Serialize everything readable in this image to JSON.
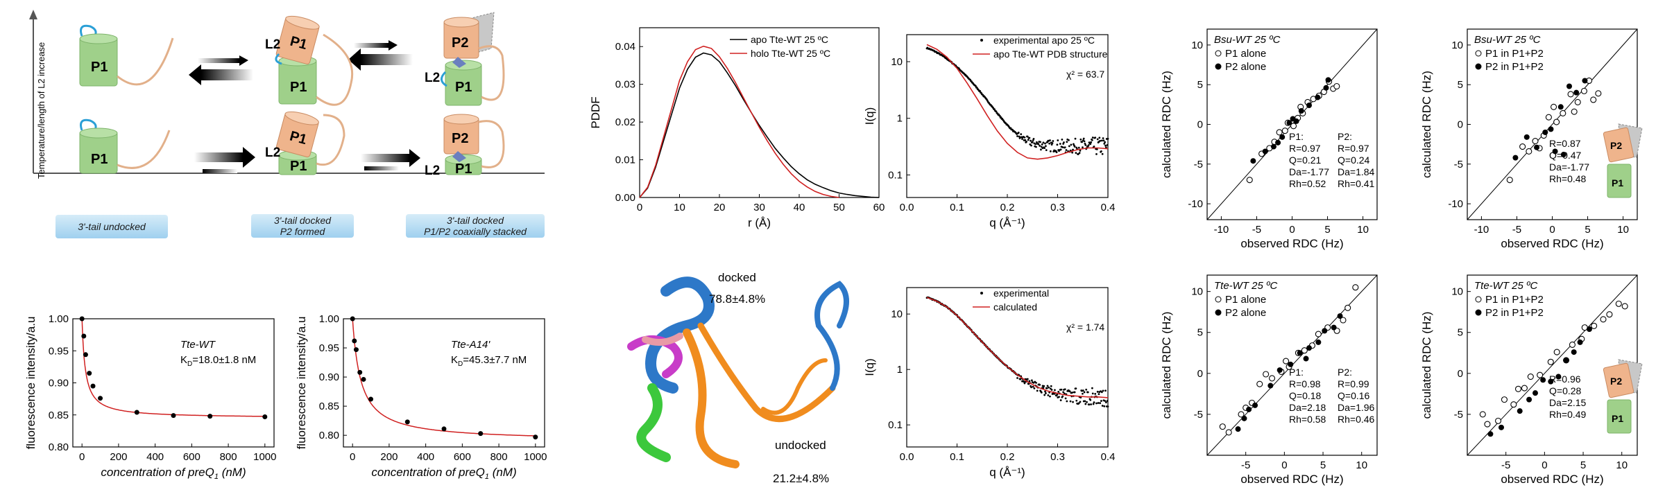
{
  "schematic": {
    "yaxis_label": "Temperature/length of L2 increase",
    "states": [
      "3'-tail undocked",
      "3'-tail docked\nP2 formed",
      "3'-tail docked\nP1/P2 coaxially stacked"
    ],
    "labels": {
      "p1": "P1",
      "p2": "P2",
      "l2": "L2"
    },
    "colors": {
      "p1": "#9fd08a",
      "p2": "#efb48c",
      "tail": "#e2b08a",
      "loop": "#2a9fd6"
    }
  },
  "structure": {
    "docked_label": "docked",
    "docked_pct": "78.8±4.8%",
    "undocked_label": "undocked",
    "undocked_pct": "21.2±4.8%"
  },
  "chart_data": [
    {
      "id": "pddf",
      "type": "line",
      "xlabel": "r (Å)",
      "ylabel": "PDDF",
      "xlim": [
        0,
        60
      ],
      "ylim": [
        0,
        0.045
      ],
      "xticks": [
        "0",
        "10",
        "20",
        "30",
        "40",
        "50",
        "60"
      ],
      "yticks": [
        "0.00",
        "0.01",
        "0.02",
        "0.03",
        "0.04"
      ],
      "series": [
        {
          "name": "apo Tte-WT 25 ºC",
          "color": "#000000",
          "x": [
            0,
            2,
            4,
            6,
            8,
            10,
            12,
            14,
            16,
            18,
            20,
            22,
            24,
            26,
            28,
            30,
            32,
            34,
            36,
            38,
            40,
            42,
            44,
            46,
            48,
            50,
            52,
            54,
            56,
            58,
            60
          ],
          "y": [
            0,
            0.0025,
            0.008,
            0.015,
            0.022,
            0.029,
            0.034,
            0.0372,
            0.0383,
            0.0378,
            0.036,
            0.033,
            0.0297,
            0.026,
            0.0225,
            0.0191,
            0.016,
            0.013,
            0.0105,
            0.0082,
            0.0063,
            0.0047,
            0.0035,
            0.0026,
            0.0018,
            0.0012,
            0.0008,
            0.0005,
            0.0003,
            0.0001,
            0
          ]
        },
        {
          "name": "holo Tte-WT 25 ºC",
          "color": "#d02020",
          "x": [
            0,
            2,
            4,
            6,
            8,
            10,
            12,
            14,
            16,
            18,
            20,
            22,
            24,
            26,
            28,
            30,
            32,
            34,
            36,
            38,
            40,
            42,
            44,
            46,
            48,
            50
          ],
          "y": [
            0,
            0.0027,
            0.0085,
            0.016,
            0.0235,
            0.031,
            0.036,
            0.0392,
            0.0401,
            0.0395,
            0.0373,
            0.0342,
            0.0305,
            0.0265,
            0.0225,
            0.0186,
            0.015,
            0.0117,
            0.0088,
            0.0063,
            0.0043,
            0.0028,
            0.0016,
            0.0008,
            0.0003,
            0
          ]
        }
      ]
    },
    {
      "id": "saxs-top",
      "type": "scatter",
      "xlabel": "q (Å⁻¹)",
      "ylabel": "I(q)",
      "xlim": [
        0,
        0.4
      ],
      "ylim": [
        0.04,
        30
      ],
      "yscale": "log",
      "xticks": [
        "0.0",
        "0.1",
        "0.2",
        "0.3",
        "0.4"
      ],
      "yticks": [
        "0.1",
        "1",
        "10"
      ],
      "annotation": "χ² = 63.7",
      "series": [
        {
          "name": "experimental apo 25 ºC",
          "color": "#000000",
          "model": "exp-apo"
        },
        {
          "name": "apo Tte-WT PDB structure",
          "color": "#d02020",
          "x": [
            0.04,
            0.06,
            0.08,
            0.1,
            0.12,
            0.14,
            0.16,
            0.18,
            0.2,
            0.22,
            0.24,
            0.26,
            0.28,
            0.3,
            0.32,
            0.34,
            0.36,
            0.38,
            0.4
          ],
          "y": [
            20,
            16.5,
            12,
            7.6,
            4.2,
            2.2,
            1.12,
            0.6,
            0.36,
            0.25,
            0.2,
            0.19,
            0.2,
            0.22,
            0.25,
            0.28,
            0.3,
            0.3,
            0.29
          ]
        }
      ]
    },
    {
      "id": "saxs-bottom",
      "type": "scatter",
      "xlabel": "q (Å⁻¹)",
      "ylabel": "I(q)",
      "xlim": [
        0,
        0.4
      ],
      "ylim": [
        0.04,
        30
      ],
      "yscale": "log",
      "xticks": [
        "0.0",
        "0.1",
        "0.2",
        "0.3",
        "0.4"
      ],
      "yticks": [
        "0.1",
        "1",
        "10"
      ],
      "annotation": "χ² = 1.74",
      "series": [
        {
          "name": "experimental",
          "color": "#000000",
          "model": "exp-apo"
        },
        {
          "name": "calculated",
          "color": "#d02020",
          "x": [
            0.04,
            0.06,
            0.08,
            0.1,
            0.12,
            0.14,
            0.16,
            0.18,
            0.2,
            0.22,
            0.24,
            0.26,
            0.28,
            0.3,
            0.32,
            0.34,
            0.36,
            0.38,
            0.4
          ],
          "y": [
            20,
            17,
            13.4,
            9.4,
            6.1,
            3.9,
            2.5,
            1.65,
            1.12,
            0.8,
            0.6,
            0.48,
            0.41,
            0.37,
            0.34,
            0.33,
            0.32,
            0.32,
            0.31
          ]
        }
      ]
    },
    {
      "id": "binding-wt",
      "type": "scatter",
      "title": "Tte-WT",
      "kd": "K",
      "kd_sub": "D",
      "kd_value": "=18.0±1.8 nM",
      "xlabel": "concentration of preQ",
      "xlabel_sub": "1",
      "xlabel_unit": " (nM)",
      "ylabel": "fluorescence intensity/a.u",
      "xlim": [
        -50,
        1050
      ],
      "ylim": [
        0.8,
        1.0
      ],
      "xticks": [
        "0",
        "200",
        "400",
        "600",
        "800",
        "1000"
      ],
      "yticks": [
        "0.80",
        "0.85",
        "0.90",
        "0.95",
        "1.00"
      ],
      "points": {
        "x": [
          0,
          10,
          20,
          40,
          60,
          100,
          300,
          500,
          700,
          1000
        ],
        "y": [
          1.0,
          0.973,
          0.944,
          0.915,
          0.895,
          0.876,
          0.854,
          0.849,
          0.848,
          0.847
        ]
      },
      "fit": {
        "color": "#d02020",
        "bottom": 0.845,
        "kd": 18
      }
    },
    {
      "id": "binding-a14",
      "type": "scatter",
      "title": "Tte-A14'",
      "kd": "K",
      "kd_sub": "D",
      "kd_value": "=45.3±7.7 nM",
      "xlabel": "concentration of preQ",
      "xlabel_sub": "1",
      "xlabel_unit": " (nM)",
      "ylabel": "fluorescence intensity/a.u",
      "xlim": [
        -50,
        1050
      ],
      "ylim": [
        0.78,
        1.0
      ],
      "xticks": [
        "0",
        "200",
        "400",
        "600",
        "800",
        "1000"
      ],
      "yticks": [
        "0.80",
        "0.85",
        "0.90",
        "0.95",
        "1.00"
      ],
      "points": {
        "x": [
          0,
          10,
          20,
          40,
          60,
          100,
          300,
          500,
          700,
          1000
        ],
        "y": [
          1.0,
          0.962,
          0.947,
          0.908,
          0.896,
          0.862,
          0.823,
          0.811,
          0.803,
          0.797
        ]
      },
      "fit": {
        "color": "#d02020",
        "bottom": 0.79,
        "kd": 45
      }
    },
    {
      "id": "rdc-bsu-alone",
      "type": "scatter",
      "title": "Bsu-WT  25 ºC",
      "xlabel": "observed RDC (Hz)",
      "ylabel": "calculated RDC (Hz)",
      "xlim": [
        -12,
        12
      ],
      "ylim": [
        -12,
        12
      ],
      "xticks": [
        "-10",
        "-5",
        "0",
        "5",
        "10"
      ],
      "yticks": [
        "-10",
        "-5",
        "0",
        "5",
        "10"
      ],
      "legend": [
        "P1 alone",
        "P2 alone"
      ],
      "stats": [
        [
          "P1:",
          "R=0.97",
          "Q=0.21",
          "Da=-1.77",
          "Rh=0.52"
        ],
        [
          "P2:",
          "R=0.97",
          "Q=0.24",
          "Da=1.84",
          "Rh=0.41"
        ]
      ],
      "open": {
        "x": [
          -6,
          -3.2,
          -2.5,
          -1.8,
          -1,
          -0.6,
          0.2,
          0.8,
          1.5,
          2.2,
          3,
          3.8,
          4.5,
          5.2,
          5.8,
          6.3,
          -4.3,
          1.2
        ],
        "y": [
          -7,
          -3,
          -2.2,
          -1,
          -0.8,
          0.2,
          -0.2,
          0.8,
          1.4,
          2.8,
          3.2,
          3.6,
          4.1,
          5.4,
          4.5,
          4.8,
          -3.7,
          2.2
        ]
      },
      "filled": {
        "x": [
          -5.5,
          -3.8,
          -2.6,
          -1.4,
          -0.4,
          0.6,
          1.3,
          2.4,
          3.6,
          4.8,
          5.1,
          -2,
          0.1
        ],
        "y": [
          -4.6,
          -3.4,
          -2.8,
          -1.6,
          0.2,
          0.4,
          1.7,
          2.4,
          3.4,
          4.6,
          5.6,
          -2.3,
          0.7
        ]
      }
    },
    {
      "id": "rdc-bsu-complex",
      "type": "scatter",
      "title": "Bsu-WT  25 ºC",
      "xlabel": "observed RDC (Hz)",
      "ylabel": "calculated RDC (Hz)",
      "xlim": [
        -12,
        12
      ],
      "ylim": [
        -12,
        12
      ],
      "xticks": [
        "-10",
        "-5",
        "0",
        "5",
        "10"
      ],
      "yticks": [
        "-10",
        "-5",
        "0",
        "5",
        "10"
      ],
      "legend": [
        "P1 in P1+P2",
        "P2 in P1+P2"
      ],
      "stats": [
        [
          "R=0.87",
          "Q=0.47",
          "Da=-1.77",
          "Rh=0.48"
        ]
      ],
      "open": {
        "x": [
          -6,
          -4.2,
          -3.3,
          -2.4,
          -1.2,
          -0.5,
          0.6,
          1.5,
          2.6,
          3.6,
          4.5,
          5.2,
          5.8,
          6.5,
          -1.8,
          0.2,
          3.1
        ],
        "y": [
          -7,
          -2.8,
          -3.4,
          -2.1,
          -1.4,
          0.9,
          0.3,
          1.4,
          3.8,
          2.8,
          4.2,
          5.5,
          3.1,
          3.9,
          -3,
          2.2,
          1.6
        ]
      },
      "filled": {
        "x": [
          -5.2,
          -3.6,
          -2.2,
          -1,
          0.4,
          1.2,
          2.4,
          3.4,
          4.6,
          -0.2,
          1.6
        ],
        "y": [
          -4.2,
          -1.6,
          -2.9,
          -1,
          -3.4,
          2.2,
          4.8,
          4,
          5.5,
          -0.6,
          -3.8
        ]
      }
    },
    {
      "id": "rdc-tte-alone",
      "type": "scatter",
      "title": "Tte-WT  25 ºC",
      "xlabel": "observed RDC (Hz)",
      "ylabel": "calculated RDC (Hz)",
      "xlim": [
        -10,
        12
      ],
      "ylim": [
        -10,
        12
      ],
      "xticks": [
        "-5",
        "0",
        "5",
        "10"
      ],
      "yticks": [
        "-5",
        "0",
        "5",
        "10"
      ],
      "legend": [
        "P1 alone",
        "P2 alone"
      ],
      "stats": [
        [
          "P1:",
          "R=0.98",
          "Q=0.18",
          "Da=2.18",
          "Rh=0.58"
        ],
        [
          "P2:",
          "R=0.99",
          "Q=0.16",
          "Da=1.96",
          "Rh=0.46"
        ]
      ],
      "open": {
        "x": [
          -8,
          -7.2,
          -5.6,
          -5,
          -3.2,
          -2.4,
          -1.6,
          -0.4,
          0.6,
          1.8,
          2.6,
          3.6,
          4.4,
          5.6,
          6.8,
          7.6,
          8.2,
          9.2,
          -4.2,
          0.2
        ],
        "y": [
          -6.5,
          -7.2,
          -5,
          -4.2,
          -1.3,
          -0.1,
          -0.6,
          0.2,
          0.8,
          2.5,
          2.8,
          3.4,
          4.8,
          5.6,
          5.2,
          6.5,
          8,
          10.5,
          -3.6,
          1.5
        ]
      },
      "filled": {
        "x": [
          -6,
          -5.2,
          -4.6,
          -3.8,
          -1.8,
          0.8,
          2,
          3.2,
          4.4,
          5.2,
          6.4,
          7.2,
          2.8,
          -0.6
        ],
        "y": [
          -6.8,
          -5.5,
          -4.4,
          -3.9,
          -1.5,
          1.1,
          2.5,
          3.1,
          3.8,
          5.2,
          5.6,
          7,
          1.8,
          0.4
        ]
      }
    },
    {
      "id": "rdc-tte-complex",
      "type": "scatter",
      "title": "Tte-WT  25 ºC",
      "xlabel": "observed RDC (Hz)",
      "ylabel": "calculated RDC (Hz)",
      "xlim": [
        -10,
        12
      ],
      "ylim": [
        -10,
        12
      ],
      "xticks": [
        "-5",
        "0",
        "5",
        "10"
      ],
      "yticks": [
        "-5",
        "0",
        "5",
        "10"
      ],
      "legend": [
        "P1 in P1+P2",
        "P2 in P1+P2"
      ],
      "stats": [
        [
          "R=0.96",
          "Q=0.28",
          "Da=2.15",
          "Rh=0.49"
        ]
      ],
      "open": {
        "x": [
          -8,
          -7.4,
          -6,
          -5.2,
          -4,
          -2.6,
          -1.8,
          -0.6,
          0.8,
          1.6,
          2.8,
          3.6,
          4.8,
          5.2,
          6.4,
          7.6,
          8.4,
          9.6,
          10.4,
          -3.4
        ],
        "y": [
          -5,
          -6.2,
          -5.8,
          -3.2,
          -3.8,
          -1.8,
          -0.4,
          -0.2,
          1.4,
          2.6,
          1.6,
          3.5,
          4.2,
          5.6,
          5.8,
          6.6,
          7.2,
          8.5,
          8.2,
          -1.9
        ]
      },
      "filled": {
        "x": [
          -7,
          -5.6,
          -3.2,
          -2,
          -0.2,
          0.8,
          1.8,
          2.8,
          3.8,
          4.6,
          5.8,
          -1.2
        ],
        "y": [
          -7.4,
          -6.6,
          -4.6,
          -3.2,
          -0.8,
          -1,
          -0.4,
          1.6,
          2.6,
          3.8,
          5.4,
          -2.4
        ]
      }
    }
  ]
}
